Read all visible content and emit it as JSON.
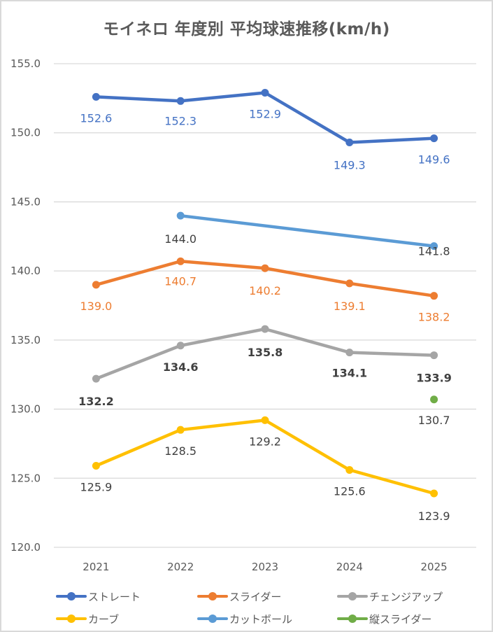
{
  "chart_data": {
    "type": "line",
    "title": "モイネロ 年度別 平均球速推移(km/h)",
    "xlabel": "",
    "ylabel": "",
    "categories": [
      "2021",
      "2022",
      "2023",
      "2024",
      "2025"
    ],
    "ylim": [
      120.0,
      155.0
    ],
    "yticks": [
      "155.0",
      "150.0",
      "145.0",
      "140.0",
      "135.0",
      "130.0",
      "125.0",
      "120.0"
    ],
    "ytick_values": [
      155,
      150,
      145,
      140,
      135,
      130,
      125,
      120
    ],
    "grid": true,
    "legend_position": "bottom",
    "series": [
      {
        "name": "ストレート",
        "color": "#4472C4",
        "label_color": "#4472C4",
        "label_bold": false,
        "values": [
          152.6,
          152.3,
          152.9,
          149.3,
          149.6
        ],
        "labels": [
          "152.6",
          "152.3",
          "152.9",
          "149.3",
          "149.6"
        ]
      },
      {
        "name": "スライダー",
        "color": "#ED7D31",
        "label_color": "#ED7D31",
        "label_bold": false,
        "values": [
          139.0,
          140.7,
          140.2,
          139.1,
          138.2
        ],
        "labels": [
          "139.0",
          "140.7",
          "140.2",
          "139.1",
          "138.2"
        ]
      },
      {
        "name": "チェンジアップ",
        "color": "#A5A5A5",
        "label_color": "#404040",
        "label_bold": true,
        "values": [
          132.2,
          134.6,
          135.8,
          134.1,
          133.9
        ],
        "labels": [
          "132.2",
          "134.6",
          "135.8",
          "134.1",
          "133.9"
        ]
      },
      {
        "name": "カーブ",
        "color": "#FFC000",
        "label_color": "#404040",
        "label_bold": false,
        "values": [
          125.9,
          128.5,
          129.2,
          125.6,
          123.9
        ],
        "labels": [
          "125.9",
          "128.5",
          "129.2",
          "125.6",
          "123.9"
        ]
      },
      {
        "name": "カットボール",
        "color": "#5B9BD5",
        "label_color": "#404040",
        "label_bold": false,
        "values": [
          null,
          144.0,
          null,
          null,
          141.8
        ],
        "labels": [
          null,
          "144.0",
          null,
          null,
          "141.8"
        ]
      },
      {
        "name": "縦スライダー",
        "color": "#70AD47",
        "label_color": "#404040",
        "label_bold": false,
        "values": [
          null,
          null,
          null,
          null,
          130.7
        ],
        "labels": [
          null,
          null,
          null,
          null,
          "130.7"
        ]
      }
    ]
  }
}
